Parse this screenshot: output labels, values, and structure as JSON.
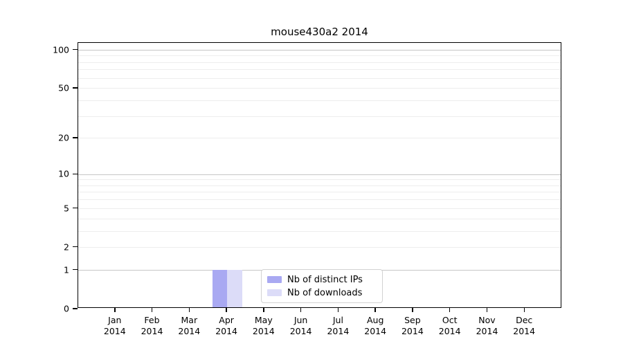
{
  "title": "mouse430a2 2014",
  "chart_data": {
    "type": "bar",
    "title": "mouse430a2 2014",
    "categories": [
      "Jan 2014",
      "Feb 2014",
      "Mar 2014",
      "Apr 2014",
      "May 2014",
      "Jun 2014",
      "Jul 2014",
      "Aug 2014",
      "Sep 2014",
      "Oct 2014",
      "Nov 2014",
      "Dec 2014"
    ],
    "series": [
      {
        "name": "Nb of distinct IPs",
        "color": "#a9a9f2",
        "values": [
          0,
          0,
          0,
          1,
          0,
          0,
          0,
          0,
          0,
          0,
          0,
          0
        ]
      },
      {
        "name": "Nb of downloads",
        "color": "#dcdcf8",
        "values": [
          0,
          0,
          0,
          1,
          0,
          0,
          0,
          0,
          0,
          0,
          0,
          0
        ]
      }
    ],
    "xlabel": "",
    "ylabel": "",
    "yscale": "log1p",
    "ylim": [
      0,
      113
    ],
    "yticks": [
      0,
      1,
      2,
      5,
      10,
      20,
      50,
      100
    ],
    "major_gridlines": [
      1,
      10,
      100
    ],
    "minor_gridlines": [
      2,
      3,
      4,
      5,
      6,
      7,
      8,
      9,
      20,
      30,
      40,
      50,
      60,
      70,
      80,
      90
    ],
    "grid": "horizontal",
    "legend_position": "bottom-center"
  }
}
